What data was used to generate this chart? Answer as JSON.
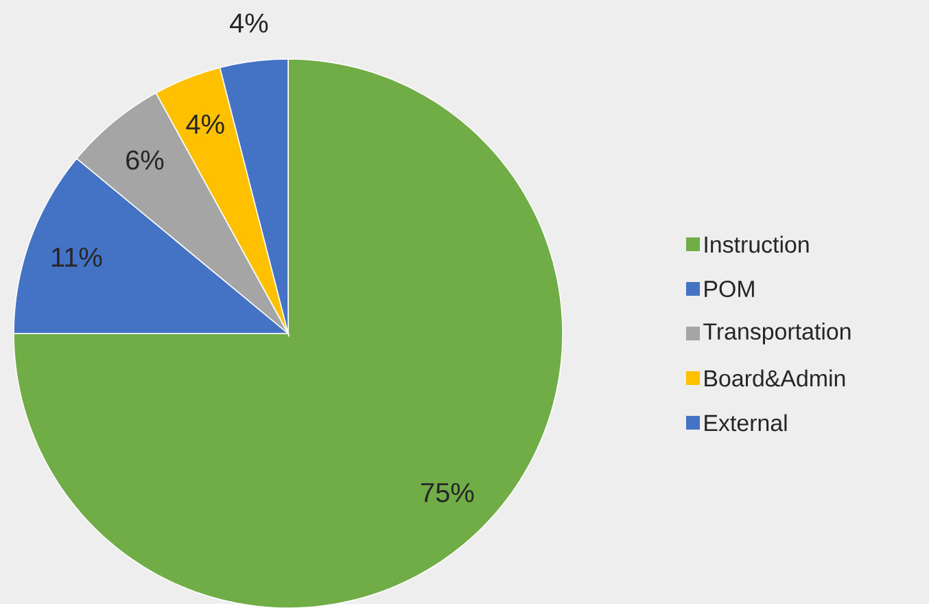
{
  "chart_data": {
    "type": "pie",
    "categories": [
      "Instruction",
      "POM",
      "Transportation",
      "Board&Admin",
      "External"
    ],
    "values": [
      75,
      11,
      6,
      4,
      4
    ],
    "value_labels": [
      "75%",
      "11%",
      "6%",
      "4%",
      "4%"
    ],
    "colors": [
      "#70ad47",
      "#4472c4",
      "#a5a5a5",
      "#ffc000",
      "#4472c4"
    ],
    "legend": "right"
  }
}
